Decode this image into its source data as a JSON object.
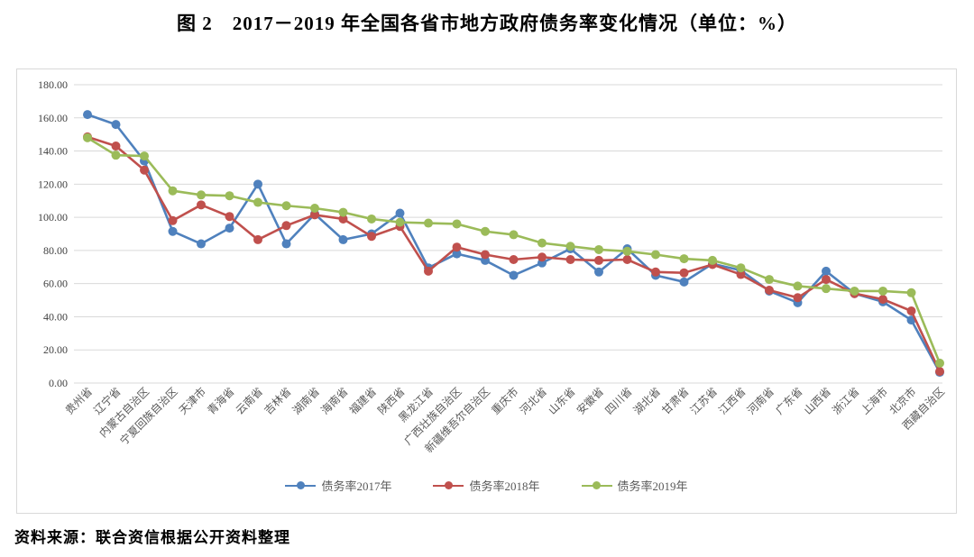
{
  "title": "图 2　2017－2019 年全国各省市地方政府债务率变化情况（单位：%）",
  "source_note": "资料来源：联合资信根据公开资料整理",
  "colors": {
    "series_2017": "#4f81bd",
    "series_2018": "#c0504d",
    "series_2019": "#9bbb59",
    "gridline": "#d9d9d9",
    "chart_border": "#d9d9d9",
    "axis_text": "#595959"
  },
  "chart_data": {
    "type": "line",
    "title": "图 2　2017－2019 年全国各省市地方政府债务率变化情况（单位：%）",
    "xlabel": "",
    "ylabel": "",
    "ylim": [
      0,
      180
    ],
    "ytick_interval": 20,
    "ytick_labels": [
      "0.00",
      "20.00",
      "40.00",
      "60.00",
      "80.00",
      "100.00",
      "120.00",
      "140.00",
      "160.00",
      "180.00"
    ],
    "grid": true,
    "legend_position": "bottom",
    "categories": [
      "贵州省",
      "辽宁省",
      "内蒙古自治区",
      "宁夏回族自治区",
      "天津市",
      "青海省",
      "云南省",
      "吉林省",
      "湖南省",
      "海南省",
      "福建省",
      "陕西省",
      "黑龙江省",
      "广西壮族自治区",
      "新疆维吾尔自治区",
      "重庆市",
      "河北省",
      "山东省",
      "安徽省",
      "四川省",
      "湖北省",
      "甘肃省",
      "江苏省",
      "江西省",
      "河南省",
      "广东省",
      "山西省",
      "浙江省",
      "上海市",
      "北京市",
      "西藏自治区"
    ],
    "series": [
      {
        "name": "债务率2017年",
        "color": "#4f81bd",
        "values": [
          162,
          156,
          134,
          91.5,
          84,
          93.5,
          120,
          84,
          102,
          86.5,
          90,
          102.5,
          69.5,
          78,
          74,
          65,
          72.5,
          81,
          67,
          81,
          65,
          61,
          72,
          68,
          55.5,
          48.5,
          67.5,
          54,
          49,
          38,
          6.5
        ]
      },
      {
        "name": "债务率2018年",
        "color": "#c0504d",
        "values": [
          148.5,
          143,
          128.5,
          98,
          107.5,
          100.5,
          86.5,
          95,
          101.5,
          99,
          88.5,
          94.5,
          67.5,
          82,
          77.5,
          74.5,
          76,
          74.5,
          74,
          74.5,
          67,
          66.5,
          71.5,
          65.5,
          56,
          51.5,
          62.5,
          54,
          50.5,
          43.5,
          7
        ]
      },
      {
        "name": "债务率2019年",
        "color": "#9bbb59",
        "values": [
          148,
          137.5,
          137,
          116,
          113.5,
          113,
          109,
          107,
          105.5,
          103,
          99,
          97,
          96.5,
          96,
          91.5,
          89.5,
          84.5,
          82.5,
          80.5,
          79.5,
          77.5,
          75,
          74,
          69.5,
          62.5,
          58.5,
          57,
          55.5,
          55.5,
          54.5,
          12
        ]
      }
    ]
  }
}
